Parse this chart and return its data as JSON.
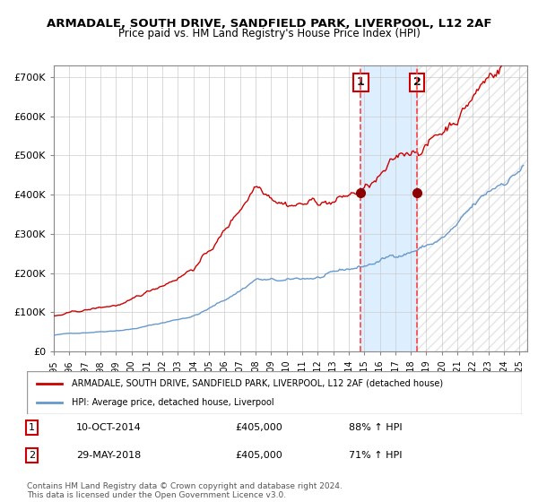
{
  "title": "ARMADALE, SOUTH DRIVE, SANDFIELD PARK, LIVERPOOL, L12 2AF",
  "subtitle": "Price paid vs. HM Land Registry's House Price Index (HPI)",
  "ylabel": "",
  "xlim_start": 1995.0,
  "xlim_end": 2025.5,
  "ylim": [
    0,
    730000
  ],
  "yticks": [
    0,
    100000,
    200000,
    300000,
    400000,
    500000,
    600000,
    700000
  ],
  "ytick_labels": [
    "£0",
    "£100K",
    "£200K",
    "£300K",
    "£400K",
    "£500K",
    "£600K",
    "£700K"
  ],
  "sale1_date_num": 2014.78,
  "sale1_price": 405000,
  "sale1_label": "1",
  "sale1_date_str": "10-OCT-2014",
  "sale1_hpi_pct": "88% ↑ HPI",
  "sale2_date_num": 2018.41,
  "sale2_price": 405000,
  "sale2_label": "2",
  "sale2_date_str": "29-MAY-2018",
  "sale2_hpi_pct": "71% ↑ HPI",
  "hpi_line_color": "#6699CC",
  "price_line_color": "#CC0000",
  "dot_color": "#8B0000",
  "shade_color": "#DDEEFF",
  "vline_color": "#FF4444",
  "grid_color": "#CCCCCC",
  "background_color": "#FFFFFF",
  "legend_label_price": "ARMADALE, SOUTH DRIVE, SANDFIELD PARK, LIVERPOOL, L12 2AF (detached house)",
  "legend_label_hpi": "HPI: Average price, detached house, Liverpool",
  "footnote": "Contains HM Land Registry data © Crown copyright and database right 2024.\nThis data is licensed under the Open Government Licence v3.0.",
  "xtick_years": [
    1995,
    1996,
    1997,
    1998,
    1999,
    2000,
    2001,
    2002,
    2003,
    2004,
    2005,
    2006,
    2007,
    2008,
    2009,
    2010,
    2011,
    2012,
    2013,
    2014,
    2015,
    2016,
    2017,
    2018,
    2019,
    2020,
    2021,
    2022,
    2023,
    2024,
    2025
  ]
}
